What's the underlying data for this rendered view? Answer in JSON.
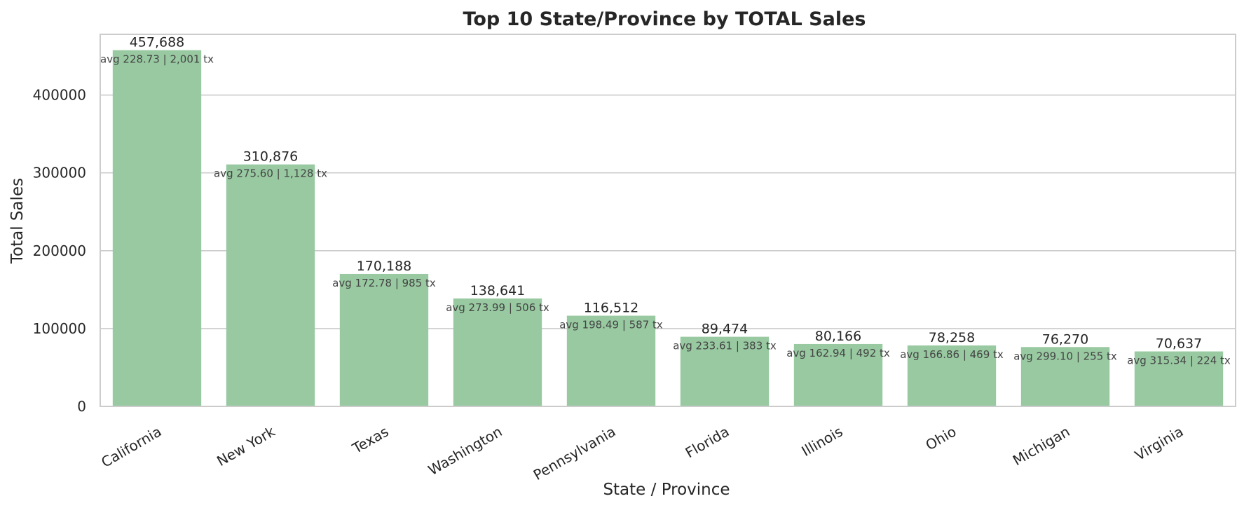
{
  "chart_data": {
    "type": "bar",
    "title": "Top 10 State/Province by TOTAL Sales",
    "xlabel": "State / Province",
    "ylabel": "Total Sales",
    "ylim": [
      0,
      478000
    ],
    "yticks": [
      0,
      100000,
      200000,
      300000,
      400000
    ],
    "ytick_labels": [
      "0",
      "100000",
      "200000",
      "300000",
      "400000"
    ],
    "grid": true,
    "bar_color": "#98c9a1",
    "categories": [
      "California",
      "New York",
      "Texas",
      "Washington",
      "Pennsylvania",
      "Florida",
      "Illinois",
      "Ohio",
      "Michigan",
      "Virginia"
    ],
    "values": [
      457688,
      310876,
      170188,
      138641,
      116512,
      89474,
      80166,
      78258,
      76270,
      70637
    ],
    "value_labels": [
      "457,688",
      "310,876",
      "170,188",
      "138,641",
      "116,512",
      "89,474",
      "80,166",
      "78,258",
      "76,270",
      "70,637"
    ],
    "sub_labels": [
      "avg 228.73 | 2,001 tx",
      "avg 275.60 | 1,128 tx",
      "avg 172.78 | 985 tx",
      "avg 273.99 | 506 tx",
      "avg 198.49 | 587 tx",
      "avg 233.61 | 383 tx",
      "avg 162.94 | 492 tx",
      "avg 166.86 | 469 tx",
      "avg 299.10 | 255 tx",
      "avg 315.34 | 224 tx"
    ]
  }
}
